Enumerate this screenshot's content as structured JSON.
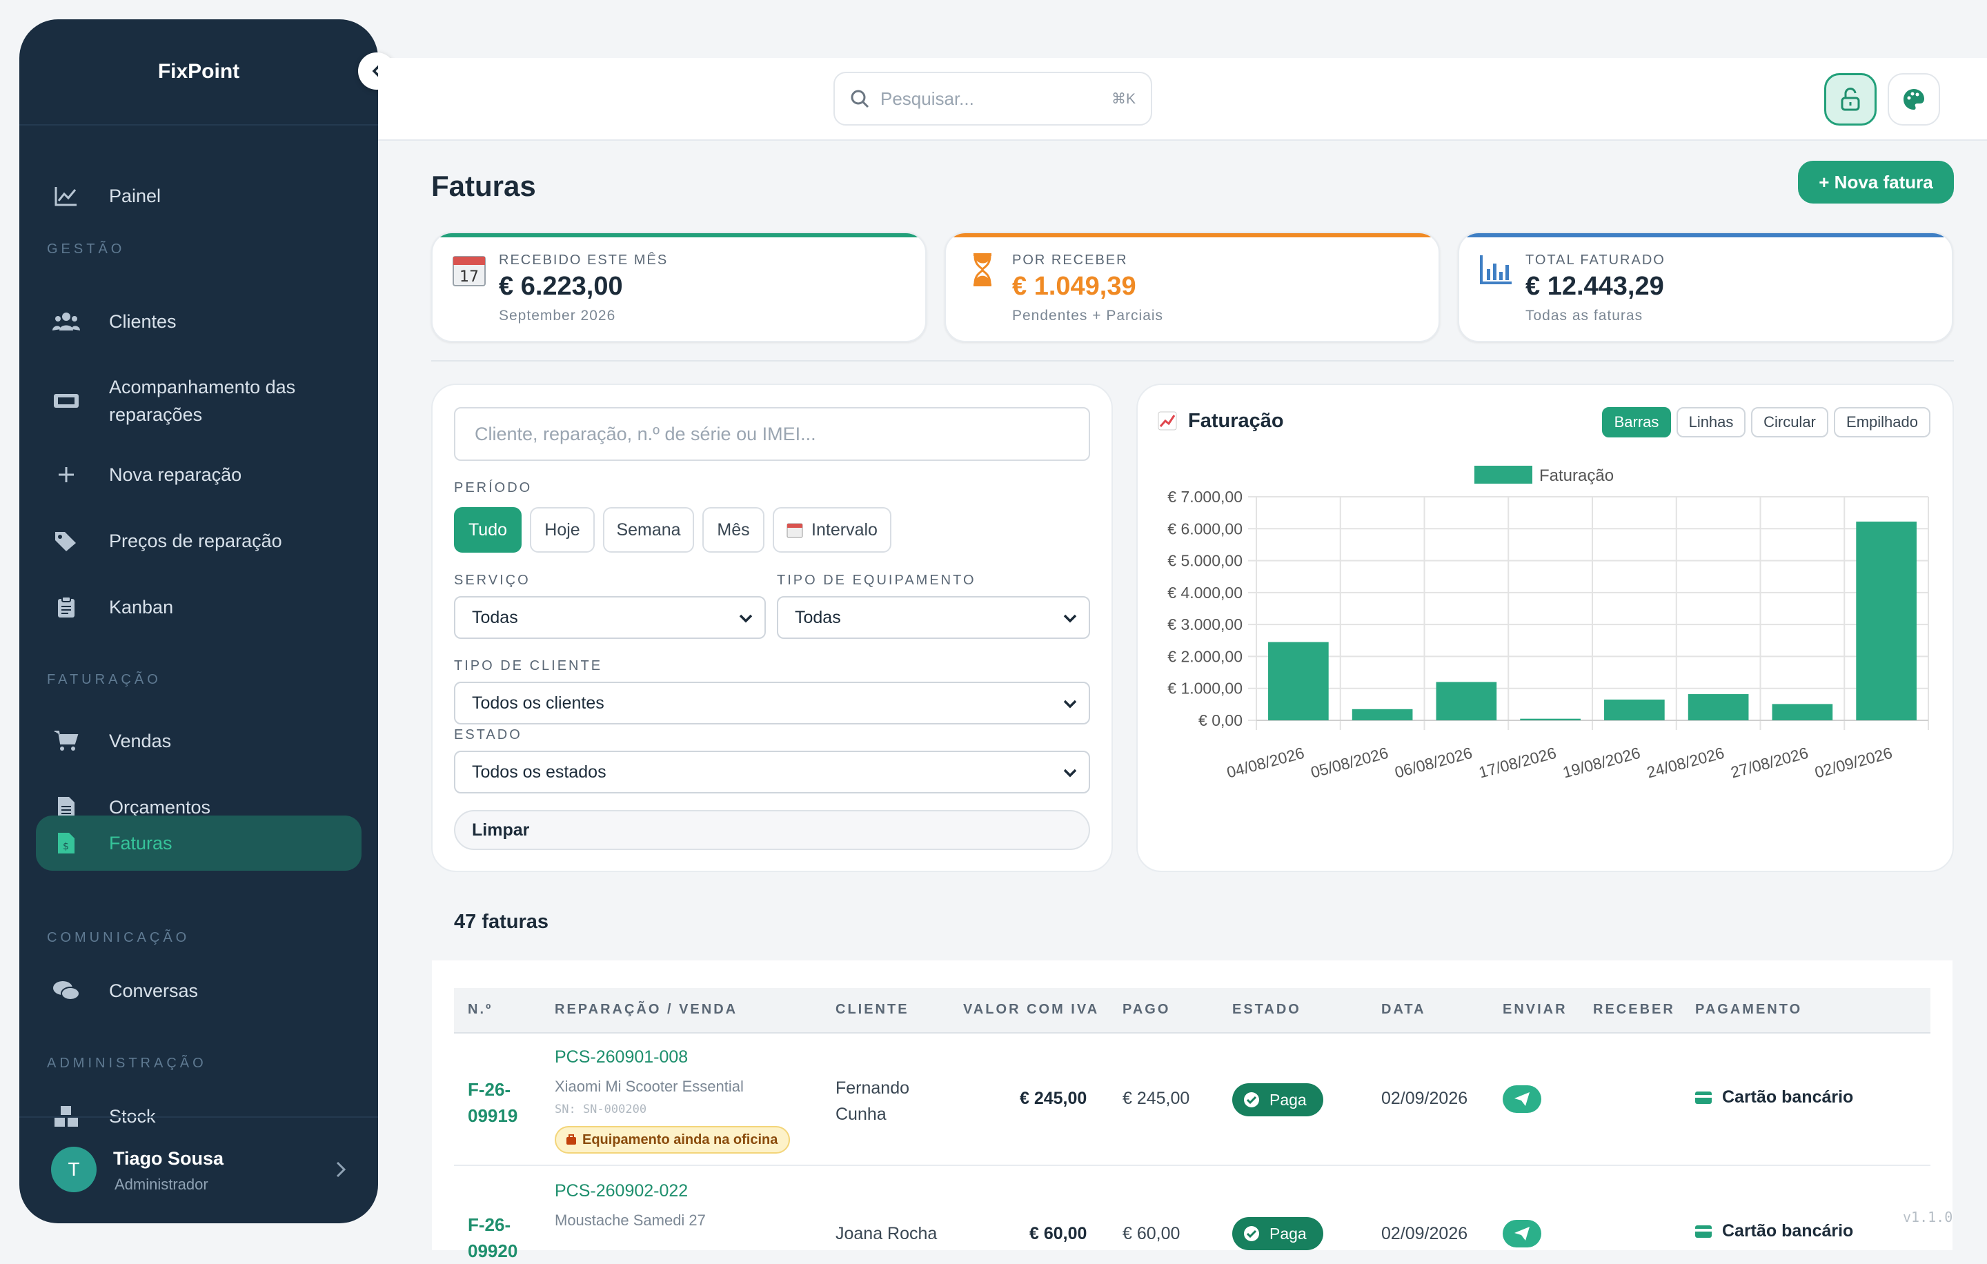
{
  "app": {
    "brand": "FixPoint",
    "version": "v1.1.0"
  },
  "sidebar": {
    "items": [
      {
        "label": "Painel",
        "icon": "chart-line-icon"
      },
      {
        "label": "Clientes",
        "icon": "users-icon"
      },
      {
        "label": "Acompanhamento das reparações",
        "icon": "ticket-icon"
      },
      {
        "label": "Nova reparação",
        "icon": "plus-icon"
      },
      {
        "label": "Preços de reparação",
        "icon": "tags-icon"
      },
      {
        "label": "Kanban",
        "icon": "clipboard-icon"
      },
      {
        "label": "Vendas",
        "icon": "cart-icon"
      },
      {
        "label": "Orçamentos",
        "icon": "file-icon"
      },
      {
        "label": "Faturas",
        "icon": "invoice-icon"
      },
      {
        "label": "Conversas",
        "icon": "comments-icon"
      },
      {
        "label": "Stock",
        "icon": "boxes-icon"
      }
    ],
    "sections": {
      "gestao": "GESTÃO",
      "faturacao": "FATURAÇÃO",
      "comunicacao": "COMUNICAÇÃO",
      "administracao": "ADMINISTRAÇÃO"
    },
    "user": {
      "initial": "T",
      "name": "Tiago Sousa",
      "role": "Administrador"
    }
  },
  "topbar": {
    "search_placeholder": "Pesquisar...",
    "search_shortcut": "⌘K"
  },
  "page": {
    "title": "Faturas",
    "new_button": "+ Nova fatura"
  },
  "stats": [
    {
      "label": "RECEBIDO ESTE MÊS",
      "value": "€ 6.223,00",
      "sub": "September 2026",
      "color": "#22a07a",
      "icon_text": "17"
    },
    {
      "label": "POR RECEBER",
      "value": "€ 1.049,39",
      "sub": "Pendentes + Parciais",
      "color": "#f08a24"
    },
    {
      "label": "TOTAL FATURADO",
      "value": "€ 12.443,29",
      "sub": "Todas as faturas",
      "color": "#3f7fc4"
    }
  ],
  "filters": {
    "search_placeholder": "Cliente, reparação, n.º de série ou IMEI...",
    "period_label": "PERÍODO",
    "periods": [
      "Tudo",
      "Hoje",
      "Semana",
      "Mês",
      "Intervalo"
    ],
    "service_label": "SERVIÇO",
    "service_value": "Todas",
    "equipment_label": "TIPO DE EQUIPAMENTO",
    "equipment_value": "Todas",
    "client_type_label": "TIPO DE CLIENTE",
    "client_type_value": "Todos os clientes",
    "state_label": "ESTADO",
    "state_value": "Todos os estados",
    "clear": "Limpar"
  },
  "chart_panel": {
    "title": "Faturação",
    "tabs": [
      "Barras",
      "Linhas",
      "Circular",
      "Empilhado"
    ]
  },
  "chart_data": {
    "type": "bar",
    "categories": [
      "04/08/2026",
      "05/08/2026",
      "06/08/2026",
      "17/08/2026",
      "19/08/2026",
      "24/08/2026",
      "27/08/2026",
      "02/09/2026"
    ],
    "series": [
      {
        "name": "Faturação",
        "values": [
          2450,
          350,
          1200,
          50,
          650,
          820,
          510,
          6223
        ],
        "color": "#2aa882"
      }
    ],
    "ylim": [
      0,
      7000
    ],
    "yticks": [
      "€ 0,00",
      "€ 1.000,00",
      "€ 2.000,00",
      "€ 3.000,00",
      "€ 4.000,00",
      "€ 5.000,00",
      "€ 6.000,00",
      "€ 7.000,00"
    ],
    "legend": "top",
    "grid": true
  },
  "table": {
    "count_label": "47 faturas",
    "headers": [
      "N.º",
      "REPARAÇÃO / VENDA",
      "CLIENTE",
      "VALOR COM IVA",
      "PAGO",
      "ESTADO",
      "DATA",
      "ENVIAR",
      "RECEBER",
      "PAGAMENTO"
    ],
    "rows": [
      {
        "num": "F-26-09919",
        "num_a": "F-26-",
        "num_b": "09919",
        "ref": "PCS-260901-008",
        "device": "Xiaomi Mi Scooter Essential",
        "sn": "SN: SN-000200",
        "tag": "Equipamento ainda na oficina",
        "client_a": "Fernando",
        "client_b": "Cunha",
        "value": "€ 245,00",
        "paid": "€ 245,00",
        "state": "Paga",
        "date": "02/09/2026",
        "payment": "Cartão bancário"
      },
      {
        "num_a": "F-26-",
        "num_b": "09920",
        "ref": "PCS-260902-022",
        "device": "Moustache Samedi 27",
        "client_a": "Joana Rocha",
        "value": "€ 60,00",
        "paid": "€ 60,00",
        "state": "Paga",
        "date": "02/09/2026",
        "payment": "Cartão bancário"
      }
    ]
  }
}
